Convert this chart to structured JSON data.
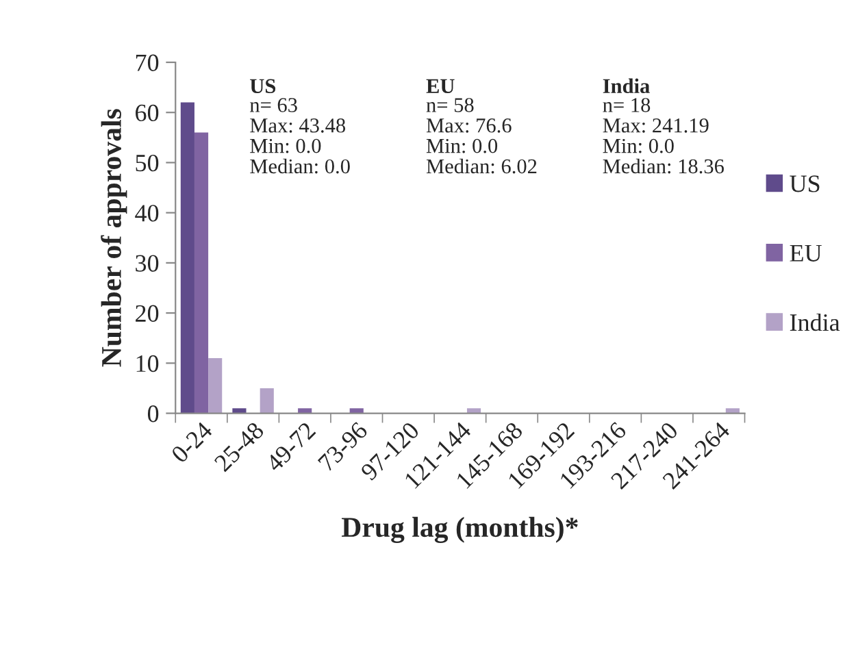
{
  "chart_data": {
    "type": "bar",
    "xlabel": "Drug lag (months)*",
    "ylabel": "Number of approvals",
    "categories": [
      "0-24",
      "25-48",
      "49-72",
      "73-96",
      "97-120",
      "121-144",
      "145-168",
      "169-192",
      "193-216",
      "217-240",
      "241-264"
    ],
    "series": [
      {
        "name": "US",
        "color": "#5f4b8b",
        "values": [
          62,
          1,
          0,
          0,
          0,
          0,
          0,
          0,
          0,
          0,
          0
        ]
      },
      {
        "name": "EU",
        "color": "#8064a2",
        "values": [
          56,
          0,
          1,
          1,
          0,
          0,
          0,
          0,
          0,
          0,
          0
        ]
      },
      {
        "name": "India",
        "color": "#b3a2c7",
        "values": [
          11,
          5,
          0,
          0,
          0,
          1,
          0,
          0,
          0,
          0,
          1
        ]
      }
    ],
    "ylim": [
      0,
      70
    ],
    "yticks": [
      0,
      10,
      20,
      30,
      40,
      50,
      60,
      70
    ],
    "legend": "right",
    "annotations": [
      "US",
      "n= 63\nMax: 43.48\nMin: 0.0\nMedian: 0.0",
      "EU",
      "n= 58\nMax: 76.6\nMin: 0.0\nMedian: 6.02",
      "India",
      "n= 18\nMax: 241.19\nMin: 0.0\nMedian: 18.36"
    ]
  }
}
